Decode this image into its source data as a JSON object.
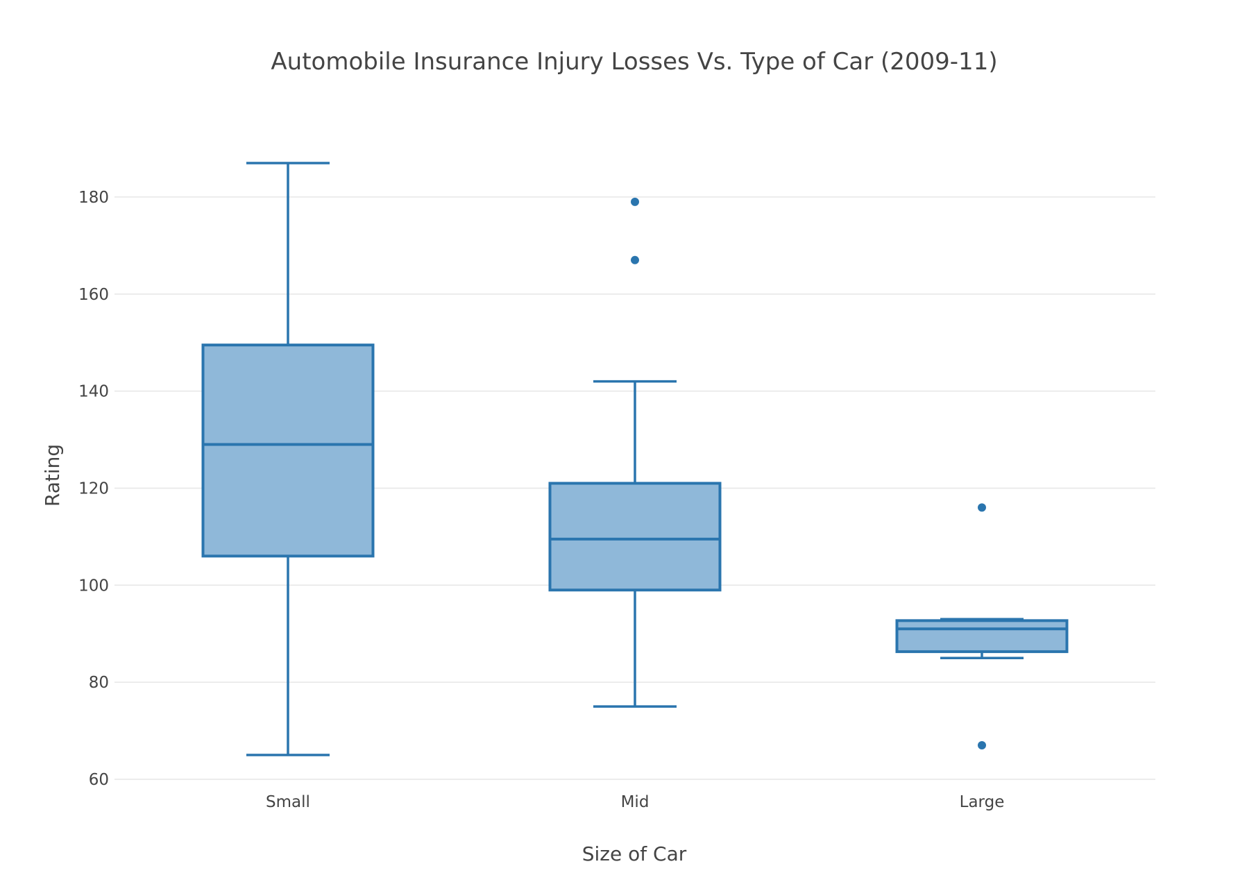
{
  "chart_data": {
    "type": "box",
    "title": "Automobile Insurance Injury Losses Vs. Type of Car (2009-11)",
    "xlabel": "Size of Car",
    "ylabel": "Rating",
    "ylim": [
      60,
      192
    ],
    "yticks": [
      60,
      80,
      100,
      120,
      140,
      160,
      180
    ],
    "grid": true,
    "colors": {
      "line": "#2a75ae",
      "fill": "#8fb8d9"
    },
    "categories": [
      "Small",
      "Mid",
      "Large"
    ],
    "boxes": [
      {
        "category": "Small",
        "min": 65,
        "q1": 106,
        "median": 129,
        "q3": 149.5,
        "max": 187,
        "outliers": []
      },
      {
        "category": "Mid",
        "min": 75,
        "q1": 99,
        "median": 109.5,
        "q3": 121,
        "max": 142,
        "outliers": [
          167,
          179
        ]
      },
      {
        "category": "Large",
        "min": 85,
        "q1": 86.3,
        "median": 91,
        "q3": 92.7,
        "max": 93,
        "outliers": [
          67,
          116
        ]
      }
    ]
  }
}
